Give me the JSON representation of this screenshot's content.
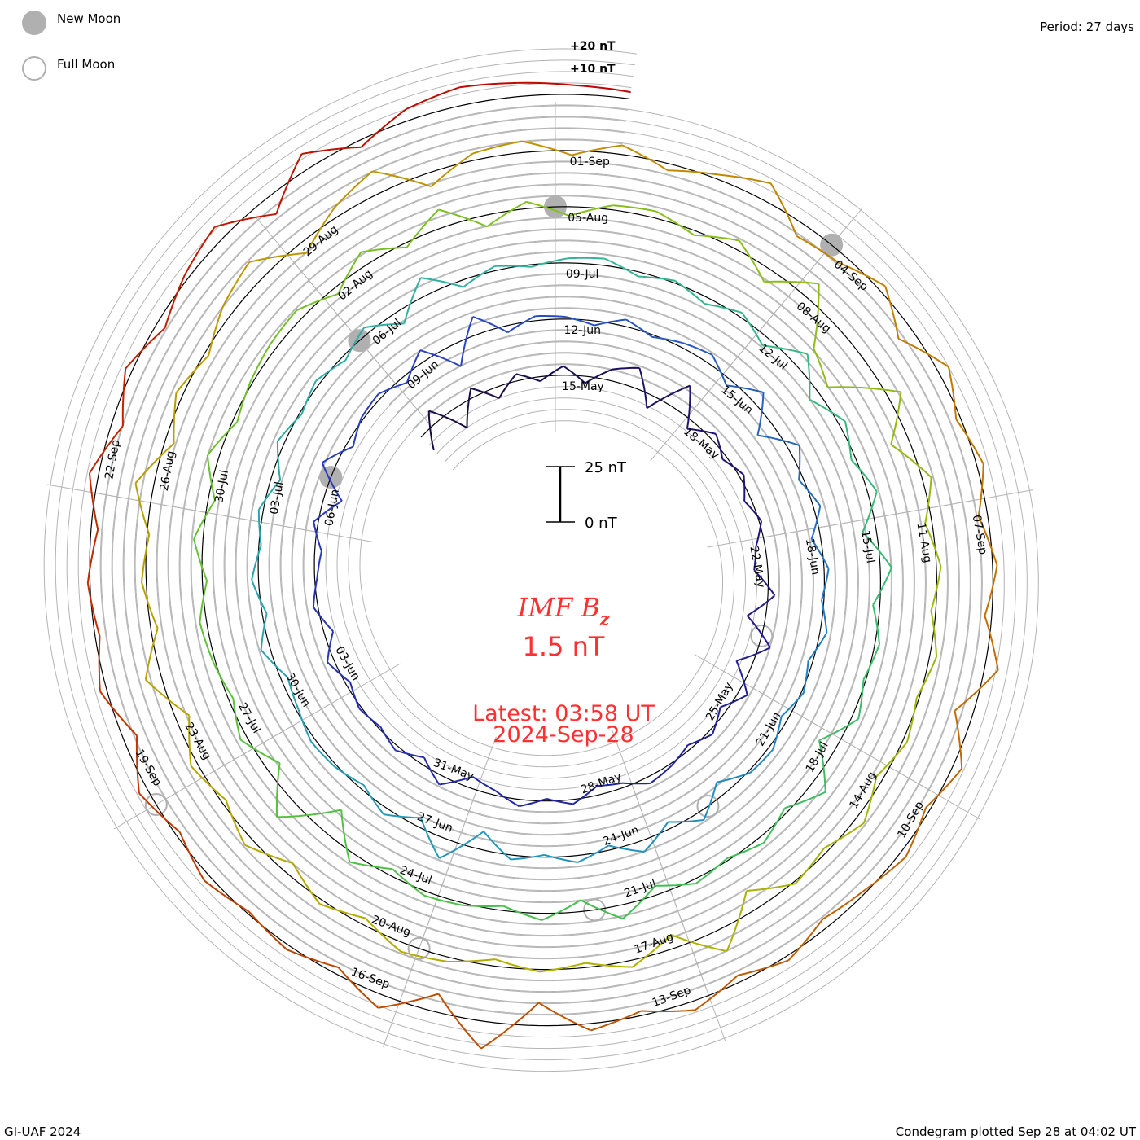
{
  "legend": {
    "new_moon": "New Moon",
    "full_moon": "Full Moon"
  },
  "period_label": "Period: 27 days",
  "footer_left": "GI-UAF 2024",
  "footer_right": "Condegram plotted Sep 28 at 04:02 UT",
  "center": {
    "title_main": "IMF B",
    "title_sub": "z",
    "value": "1.5 nT",
    "latest": "Latest: 03:58 UT",
    "date": "2024-Sep-28",
    "scale_top": "25 nT",
    "scale_bottom": "0 nT"
  },
  "chart_data": {
    "type": "line",
    "title": "IMF Bz",
    "subtype": "spiral condegram",
    "period_days": 27,
    "units": "nT",
    "grid_step_nT": 5,
    "grid_labels": [
      "+20 nT",
      "+10 nT"
    ],
    "label_origin": "2024-05-15T12:00Z",
    "label_step_days": 3,
    "date_labels": [
      "15-May",
      "18-May",
      "22-May",
      "25-May",
      "28-May",
      "31-May",
      "03-Jun",
      "06-Jun",
      "09-Jun",
      "12-Jun",
      "15-Jun",
      "18-Jun",
      "21-Jun",
      "24-Jun",
      "27-Jun",
      "30-Jun",
      "03-Jul",
      "06-Jul",
      "09-Jul",
      "12-Jul",
      "15-Jul",
      "18-Jul",
      "21-Jul",
      "24-Jul",
      "27-Jul",
      "30-Jul",
      "02-Aug",
      "05-Aug",
      "08-Aug",
      "11-Aug",
      "14-Aug",
      "17-Aug",
      "20-Aug",
      "23-Aug",
      "26-Aug",
      "29-Aug",
      "01-Sep",
      "04-Sep",
      "07-Sep",
      "10-Sep",
      "13-Sep",
      "16-Sep",
      "19-Sep",
      "22-Sep"
    ],
    "new_moons": [
      "2024-06-06",
      "2024-07-05",
      "2024-08-04",
      "2024-09-03"
    ],
    "full_moons": [
      "2024-05-23",
      "2024-06-22",
      "2024-07-21",
      "2024-08-19",
      "2024-09-18"
    ],
    "series": {
      "name": "Bz",
      "start": "2024-05-12T04:00Z",
      "step_hours": 12,
      "values": [
        -8,
        6,
        -10,
        4,
        -5,
        3,
        -2,
        4,
        -3,
        5,
        9,
        -6,
        12,
        -4,
        3,
        -2,
        2,
        -3,
        1,
        -4,
        -6,
        3,
        -8,
        5,
        -7,
        4,
        -3,
        2,
        -2,
        1,
        3,
        -2,
        -4,
        2,
        -1,
        3,
        -2,
        -5,
        4,
        -3,
        2,
        -1,
        1,
        -2,
        3,
        -4,
        2,
        -1,
        -3,
        2,
        -8,
        6,
        -3,
        1,
        2,
        -3,
        5,
        -10,
        8,
        -3,
        2,
        1,
        -2,
        3,
        -1,
        2,
        4,
        -3,
        6,
        -8,
        5,
        -2,
        3,
        -4,
        2,
        -1,
        3,
        -2,
        1,
        -3,
        2,
        1,
        -6,
        4,
        -3,
        5,
        -2,
        3,
        -1,
        2,
        -8,
        9,
        -4,
        3,
        -2,
        1,
        2,
        -1,
        -3,
        4,
        -2,
        3,
        -1,
        2,
        -4,
        3,
        -1,
        2,
        -2,
        3,
        -6,
        8,
        -3,
        2,
        -1,
        2,
        3,
        -2,
        1,
        -3,
        2,
        -4,
        7,
        -5,
        3,
        -2,
        4,
        -6,
        5,
        -3,
        2,
        -1,
        3,
        -8,
        7,
        -2,
        3,
        -1,
        2,
        -4,
        6,
        -5,
        3,
        -2,
        1,
        2,
        -3,
        4,
        -12,
        10,
        -6,
        3,
        -2,
        1,
        3,
        -2,
        4,
        -3,
        5,
        -2,
        1,
        3,
        4,
        -3,
        6,
        -2,
        8,
        -5,
        3,
        -4,
        2,
        3,
        -2,
        4,
        -6,
        8,
        -14,
        -20,
        6,
        -8,
        4,
        -3,
        2,
        -2,
        3,
        -1,
        2,
        -3,
        4,
        -2,
        1,
        -9,
        10,
        -6,
        3,
        -2,
        1,
        -3,
        2,
        4,
        -3,
        2,
        -5,
        4,
        -2,
        3,
        -6,
        7,
        -3,
        2,
        -1,
        8,
        -4,
        3,
        -2,
        5,
        9,
        -5,
        4,
        10,
        -6,
        3,
        5,
        -2,
        4,
        -3,
        2,
        8,
        -6,
        -4,
        3,
        -7,
        5,
        -2,
        3,
        -4,
        2,
        -3,
        6,
        -8,
        4,
        -2,
        3,
        -1,
        -4,
        2,
        -3,
        4,
        -2,
        3,
        -10,
        12,
        -8,
        6,
        -3,
        2,
        -1,
        3,
        -2,
        4,
        -6,
        3,
        -2,
        1,
        -3,
        4,
        -5,
        3,
        -4,
        2,
        6,
        -8,
        7,
        -3,
        5,
        8,
        6,
        4,
        3
      ]
    },
    "colormap": [
      "#1a0a40",
      "#2020a0",
      "#2a40c0",
      "#2090c0",
      "#30b0a0",
      "#40c050",
      "#80c020",
      "#b0b000",
      "#c09000",
      "#c05000",
      "#c00000"
    ]
  }
}
